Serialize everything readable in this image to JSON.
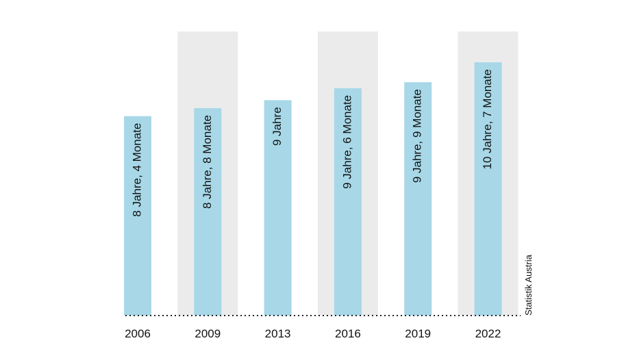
{
  "chart_data": {
    "type": "bar",
    "categories": [
      "2006",
      "2009",
      "2013",
      "2016",
      "2019",
      "2022"
    ],
    "values": [
      8.333,
      8.667,
      9.0,
      9.5,
      9.75,
      10.583
    ],
    "value_unit": "Jahre",
    "data_labels": [
      "8 Jahre, 4 Monate",
      "8 Jahre, 8 Monate",
      "9 Jahre",
      "9 Jahre, 6 Monate",
      "9 Jahre, 9 Monate",
      "10 Jahre, 7 Monate"
    ],
    "highlighted_categories": [
      "2009",
      "2016",
      "2022"
    ],
    "title": "",
    "xlabel": "",
    "ylabel": "",
    "ylim": [
      0,
      12
    ],
    "grid": false,
    "legend": "none",
    "source": "Statistik Austria",
    "colors": {
      "bar": "#a8d8e8",
      "highlight_band": "#ebebeb",
      "baseline": "#222222",
      "text": "#111111"
    }
  }
}
